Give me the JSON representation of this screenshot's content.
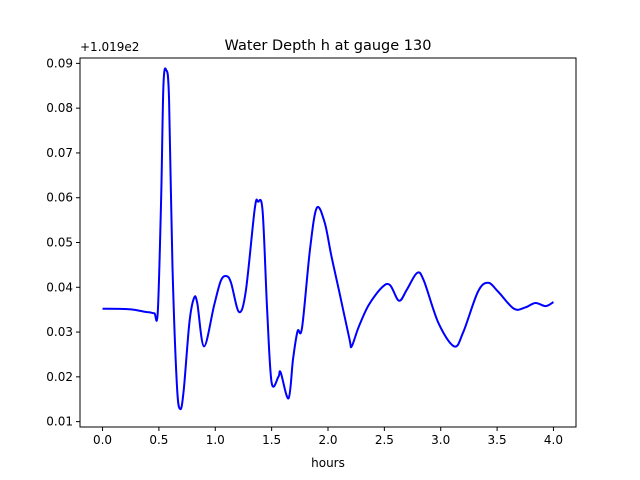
{
  "chart_data": {
    "type": "line",
    "title": "Water Depth h at gauge 130",
    "xlabel": "hours",
    "ylabel": "",
    "offset_label": "+1.019e2",
    "xlim": [
      -0.2,
      4.2
    ],
    "ylim": [
      0.0088,
      0.0912
    ],
    "xticks": [
      0.0,
      0.5,
      1.0,
      1.5,
      2.0,
      2.5,
      3.0,
      3.5,
      4.0
    ],
    "xtick_labels": [
      "0.0",
      "0.5",
      "1.0",
      "1.5",
      "2.0",
      "2.5",
      "3.0",
      "3.5",
      "4.0"
    ],
    "yticks": [
      0.01,
      0.02,
      0.03,
      0.04,
      0.05,
      0.06,
      0.07,
      0.08,
      0.09
    ],
    "ytick_labels": [
      "0.01",
      "0.02",
      "0.03",
      "0.04",
      "0.05",
      "0.06",
      "0.07",
      "0.08",
      "0.09"
    ],
    "grid": false,
    "series": [
      {
        "name": "h",
        "color": "#0000ff",
        "x": [
          0.0,
          0.24,
          0.38,
          0.42,
          0.46,
          0.49,
          0.52,
          0.54,
          0.565,
          0.59,
          0.62,
          0.66,
          0.69,
          0.72,
          0.77,
          0.81,
          0.84,
          0.9,
          0.99,
          1.05,
          1.1,
          1.14,
          1.21,
          1.27,
          1.35,
          1.38,
          1.42,
          1.46,
          1.5,
          1.56,
          1.58,
          1.65,
          1.69,
          1.73,
          1.77,
          1.84,
          1.9,
          1.97,
          2.03,
          2.1,
          2.19,
          2.21,
          2.27,
          2.36,
          2.48,
          2.55,
          2.63,
          2.7,
          2.79,
          2.85,
          2.98,
          3.12,
          3.2,
          3.33,
          3.42,
          3.51,
          3.65,
          3.75,
          3.84,
          3.93,
          4.0
        ],
        "y": [
          0.0352,
          0.0351,
          0.0345,
          0.0344,
          0.0342,
          0.0345,
          0.06,
          0.085,
          0.0885,
          0.082,
          0.045,
          0.018,
          0.0128,
          0.017,
          0.032,
          0.0375,
          0.0365,
          0.0268,
          0.036,
          0.0415,
          0.0425,
          0.041,
          0.0345,
          0.039,
          0.0575,
          0.0591,
          0.057,
          0.035,
          0.0187,
          0.02,
          0.021,
          0.0152,
          0.024,
          0.0302,
          0.031,
          0.0484,
          0.0577,
          0.0545,
          0.047,
          0.039,
          0.0285,
          0.0268,
          0.031,
          0.036,
          0.04,
          0.0405,
          0.037,
          0.0395,
          0.0432,
          0.0415,
          0.032,
          0.0268,
          0.03,
          0.039,
          0.041,
          0.039,
          0.0352,
          0.0355,
          0.0365,
          0.0358,
          0.0367
        ]
      }
    ]
  }
}
